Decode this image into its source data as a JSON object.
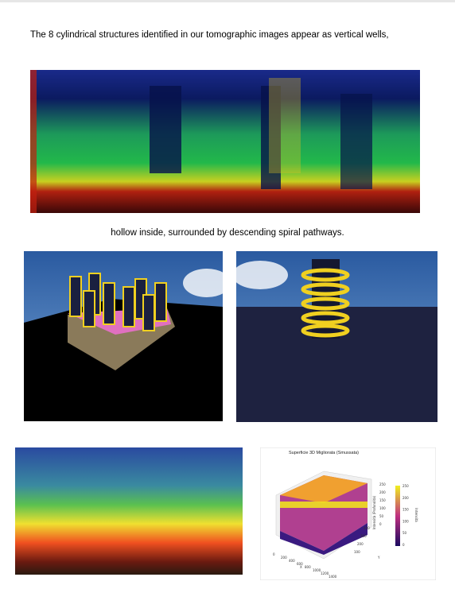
{
  "paragraphs": [
    "The 8 cylindrical structures identified in our tomographic images appear as vertical wells,",
    "hollow inside, surrounded by descending spiral pathways."
  ],
  "plot": {
    "title": "Superficie 3D Migliorata (Smussata)",
    "x_label": "X",
    "y_label": "Y",
    "z_label": "Intensità (Profondità)",
    "colorbar_label": "Intensità",
    "colorbar_ticks": [
      "250",
      "200",
      "150",
      "100",
      "50",
      "0"
    ],
    "z_ticks": [
      "250",
      "200",
      "150",
      "100",
      "50",
      "0"
    ],
    "x_ticks": [
      "0",
      "200",
      "400",
      "600",
      "800",
      "1000",
      "1200",
      "1400"
    ],
    "y_ticks": [
      "400",
      "300",
      "200",
      "100"
    ]
  }
}
